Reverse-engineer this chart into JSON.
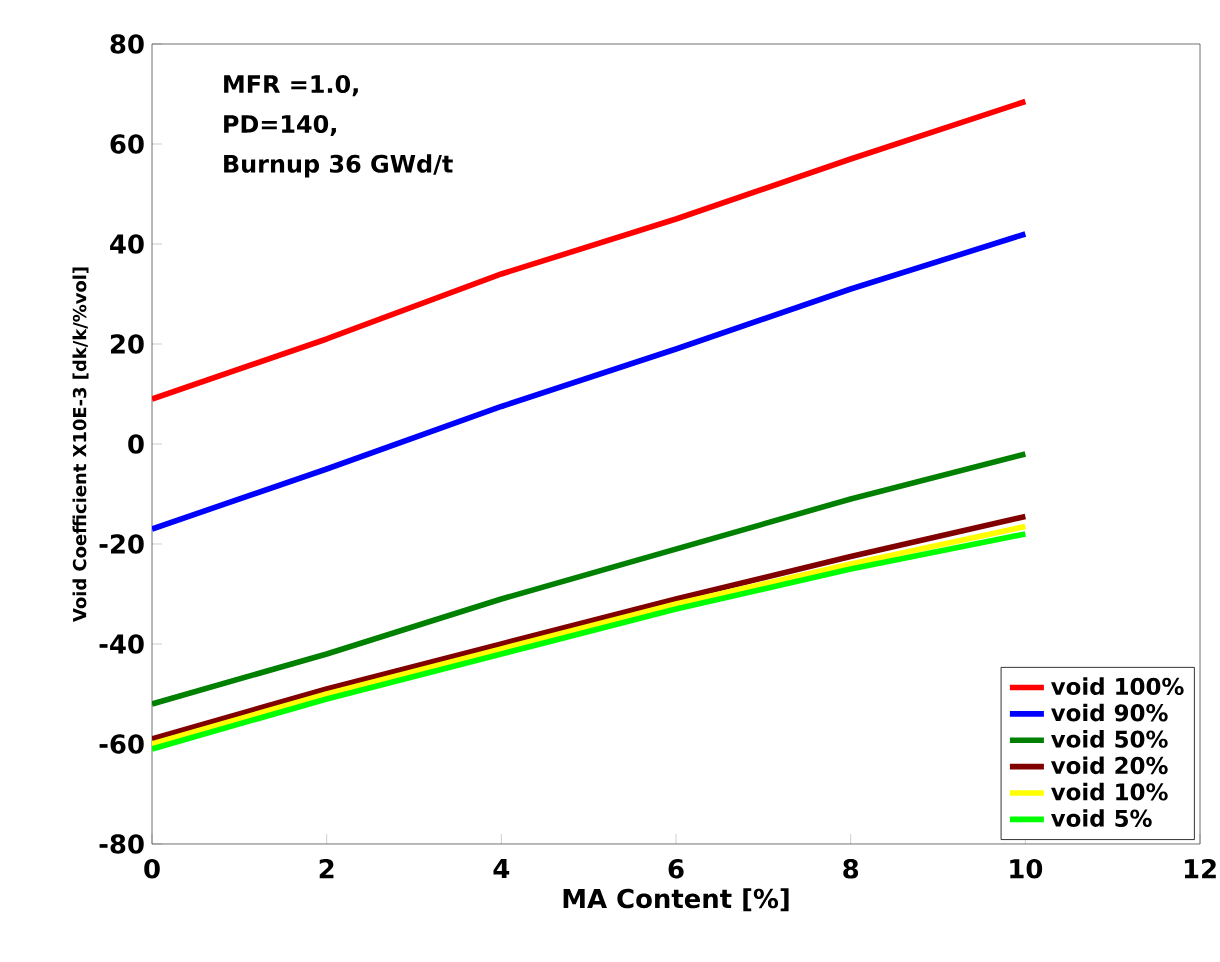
{
  "chart_data": {
    "type": "line",
    "xlabel": "MA Content [%]",
    "ylabel": "Void Coefficient X10E-3 [dk/k/%vol]",
    "annotations": [
      "MFR =1.0,",
      "PD=140,",
      "Burnup 36 GWd/t"
    ],
    "x": [
      0,
      2,
      4,
      6,
      8,
      10
    ],
    "series": [
      {
        "name": "void 100%",
        "color": "#ff0000",
        "values": [
          9,
          21,
          34,
          45,
          57,
          68.5
        ]
      },
      {
        "name": "void 90%",
        "color": "#0000ff",
        "values": [
          -17,
          -5,
          7.5,
          19,
          31,
          42
        ]
      },
      {
        "name": "void 50%",
        "color": "#008000",
        "values": [
          -52,
          -42,
          -31,
          -21,
          -11,
          -2
        ]
      },
      {
        "name": "void 20%",
        "color": "#800000",
        "values": [
          -59,
          -49,
          -40,
          -31,
          -22.5,
          -14.5
        ]
      },
      {
        "name": "void 10%",
        "color": "#ffff00",
        "values": [
          -60,
          -50,
          -41,
          -32,
          -24,
          -16.5
        ]
      },
      {
        "name": "void 5%",
        "color": "#00ff00",
        "values": [
          -61,
          -51,
          -42,
          -33,
          -25,
          -18
        ]
      }
    ],
    "xlim": [
      0,
      12
    ],
    "xticks": [
      0,
      2,
      4,
      6,
      8,
      10,
      12
    ],
    "ylim": [
      -80,
      80
    ],
    "yticks": [
      -80,
      -60,
      -40,
      -20,
      0,
      20,
      40,
      60,
      80
    ],
    "legend": "bottom right",
    "grid": false,
    "marker": "none",
    "line_style": "solid"
  }
}
